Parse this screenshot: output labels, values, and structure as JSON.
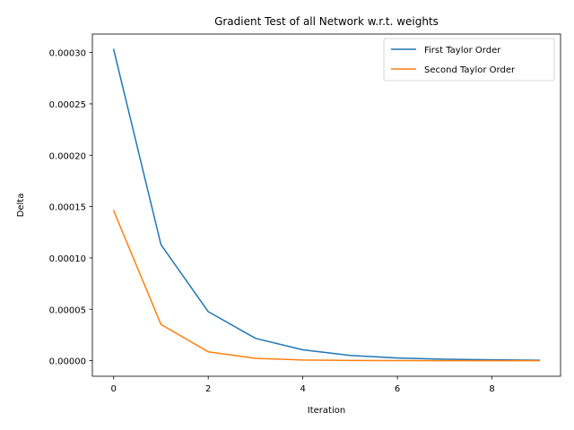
{
  "chart_data": {
    "type": "line",
    "title": "Gradient Test of all Network w.r.t. weights",
    "xlabel": "Iteration",
    "ylabel": "Delta",
    "xlim": [
      -0.45,
      9.45
    ],
    "ylim": [
      -1.52e-05,
      0.000318
    ],
    "grid": false,
    "legend_position": "upper-right",
    "x": [
      0,
      1,
      2,
      3,
      4,
      5,
      6,
      7,
      8,
      9
    ],
    "xticks": [
      0,
      2,
      4,
      6,
      8
    ],
    "xtick_labels": [
      "0",
      "2",
      "4",
      "6",
      "8"
    ],
    "yticks": [
      0,
      5e-05,
      0.0001,
      0.00015,
      0.0002,
      0.00025,
      0.0003
    ],
    "ytick_labels": [
      "0.00000",
      "0.00005",
      "0.00010",
      "0.00015",
      "0.00020",
      "0.00025",
      "0.00030"
    ],
    "series": [
      {
        "name": "First Taylor Order",
        "color": "#1f77b4",
        "values": [
          0.000303,
          0.000113,
          4.77e-05,
          2.17e-05,
          1.05e-05,
          5.1e-06,
          2.6e-06,
          1.4e-06,
          8e-07,
          4e-07
        ]
      },
      {
        "name": "Second Taylor Order",
        "color": "#ff7f0e",
        "values": [
          0.000146,
          3.53e-05,
          8.6e-06,
          2.2e-06,
          6e-07,
          2e-07,
          1e-07,
          0.0,
          0.0,
          0.0
        ]
      }
    ]
  }
}
